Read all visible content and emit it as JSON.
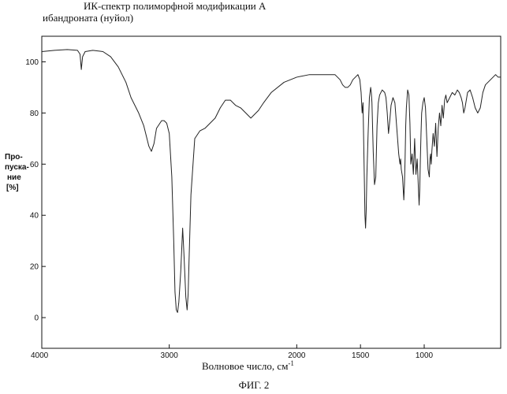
{
  "chart_data": {
    "type": "line",
    "title_lines": [
      "ИК-спектр полиморфной модификации А",
      "ибандроната (нуйол)"
    ],
    "xlabel": "Волновое число, см",
    "xlabel_sup": "-1",
    "ylabel_lines": [
      "Про-",
      "пуска-",
      "ние",
      "[%]"
    ],
    "caption": "ФИГ. 2",
    "x_axis_reversed": true,
    "xlim": [
      4000,
      400
    ],
    "ylim": [
      -12,
      110
    ],
    "xticks": [
      {
        "value": 4000,
        "label": "4000"
      },
      {
        "value": 3000,
        "label": "3000"
      },
      {
        "value": 2000,
        "label": "2000"
      },
      {
        "value": 1500,
        "label": "1500"
      },
      {
        "value": 1000,
        "label": "1000"
      }
    ],
    "yticks": [
      {
        "value": 0,
        "label": "0"
      },
      {
        "value": 20,
        "label": "20"
      },
      {
        "value": 40,
        "label": "40"
      },
      {
        "value": 60,
        "label": "60"
      },
      {
        "value": 80,
        "label": "80"
      },
      {
        "value": 100,
        "label": "100"
      }
    ],
    "grid": false,
    "series": [
      {
        "color": "#222222",
        "x": [
          4000,
          3900,
          3800,
          3720,
          3700,
          3690,
          3680,
          3660,
          3600,
          3520,
          3460,
          3400,
          3340,
          3300,
          3240,
          3200,
          3160,
          3140,
          3120,
          3100,
          3060,
          3040,
          3020,
          3000,
          2980,
          2965,
          2955,
          2945,
          2935,
          2925,
          2910,
          2895,
          2885,
          2870,
          2860,
          2852,
          2845,
          2830,
          2800,
          2760,
          2720,
          2680,
          2640,
          2600,
          2560,
          2520,
          2480,
          2440,
          2400,
          2380,
          2360,
          2340,
          2320,
          2300,
          2260,
          2200,
          2100,
          2000,
          1900,
          1800,
          1700,
          1660,
          1640,
          1620,
          1600,
          1580,
          1560,
          1540,
          1520,
          1505,
          1495,
          1487,
          1480,
          1470,
          1465,
          1460,
          1455,
          1450,
          1440,
          1430,
          1420,
          1415,
          1410,
          1400,
          1390,
          1380,
          1375,
          1370,
          1360,
          1350,
          1330,
          1310,
          1300,
          1290,
          1280,
          1270,
          1260,
          1245,
          1230,
          1215,
          1200,
          1190,
          1185,
          1180,
          1170,
          1160,
          1155,
          1150,
          1145,
          1140,
          1130,
          1120,
          1112,
          1105,
          1095,
          1085,
          1075,
          1065,
          1055,
          1045,
          1040,
          1035,
          1030,
          1025,
          1020,
          1010,
          1000,
          990,
          980,
          970,
          960,
          955,
          950,
          945,
          940,
          930,
          920,
          910,
          900,
          890,
          880,
          870,
          860,
          850,
          840,
          830,
          820,
          800,
          780,
          760,
          740,
          725,
          710,
          700,
          690,
          680,
          670,
          660,
          640,
          620,
          600,
          580,
          560,
          540,
          520,
          500,
          480,
          460,
          440,
          420,
          400
        ],
        "y": [
          104,
          104.5,
          104.8,
          104.5,
          103,
          97,
          102,
          104,
          104.5,
          104,
          102,
          98,
          92,
          86,
          80,
          75,
          67,
          65,
          68,
          74,
          77,
          77,
          76,
          72,
          55,
          30,
          10,
          3,
          2,
          6,
          18,
          35,
          25,
          8,
          3,
          9,
          22,
          48,
          70,
          73,
          74,
          76,
          78,
          82,
          85,
          85,
          83,
          82,
          80,
          79,
          78,
          79,
          80,
          81,
          84,
          88,
          92,
          94,
          95,
          95,
          95,
          93,
          91,
          90,
          90,
          91,
          93,
          94,
          95,
          93,
          88,
          80,
          84,
          55,
          40,
          35,
          42,
          55,
          72,
          86,
          90,
          88,
          84,
          65,
          52,
          55,
          65,
          75,
          84,
          87,
          89,
          88,
          86,
          80,
          72,
          77,
          83,
          86,
          84,
          74,
          64,
          60,
          62,
          58,
          55,
          46,
          52,
          62,
          75,
          82,
          89,
          87,
          76,
          60,
          64,
          56,
          70,
          56,
          62,
          50,
          44,
          50,
          62,
          72,
          80,
          84,
          86,
          82,
          70,
          58,
          55,
          62,
          64,
          60,
          65,
          72,
          67,
          76,
          63,
          74,
          80,
          75,
          83,
          78,
          85,
          87,
          84,
          86,
          88,
          87,
          89,
          88,
          86,
          84,
          80,
          82,
          85,
          88,
          89,
          86,
          82,
          80,
          82,
          88,
          91,
          92,
          93,
          94,
          95,
          94,
          94
        ]
      }
    ]
  }
}
